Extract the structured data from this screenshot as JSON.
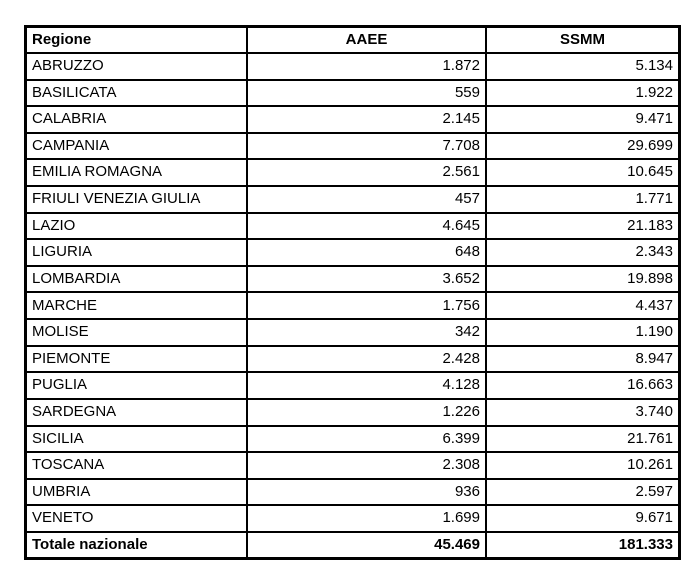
{
  "chart_data": {
    "type": "table",
    "title": "",
    "columns": [
      "Regione",
      "AAEE",
      "SSMM"
    ],
    "rows": [
      [
        "ABRUZZO",
        "1.872",
        "5.134"
      ],
      [
        "BASILICATA",
        "559",
        "1.922"
      ],
      [
        "CALABRIA",
        "2.145",
        "9.471"
      ],
      [
        "CAMPANIA",
        "7.708",
        "29.699"
      ],
      [
        "EMILIA ROMAGNA",
        "2.561",
        "10.645"
      ],
      [
        "FRIULI VENEZIA GIULIA",
        "457",
        "1.771"
      ],
      [
        "LAZIO",
        "4.645",
        "21.183"
      ],
      [
        "LIGURIA",
        "648",
        "2.343"
      ],
      [
        "LOMBARDIA",
        "3.652",
        "19.898"
      ],
      [
        "MARCHE",
        "1.756",
        "4.437"
      ],
      [
        "MOLISE",
        "342",
        "1.190"
      ],
      [
        "PIEMONTE",
        "2.428",
        "8.947"
      ],
      [
        "PUGLIA",
        "4.128",
        "16.663"
      ],
      [
        "SARDEGNA",
        "1.226",
        "3.740"
      ],
      [
        "SICILIA",
        "6.399",
        "21.761"
      ],
      [
        "TOSCANA",
        "2.308",
        "10.261"
      ],
      [
        "UMBRIA",
        "936",
        "2.597"
      ],
      [
        "VENETO",
        "1.699",
        "9.671"
      ]
    ],
    "total_row": [
      "Totale nazionale",
      "45.469",
      "181.333"
    ],
    "number_format": "Italian thousands separator (.)",
    "layout": {
      "header_bold": true,
      "total_bold": true,
      "region_align": "left",
      "number_align": "right",
      "grid": true,
      "border_color": "#000000"
    }
  },
  "table": {
    "columns": [
      {
        "label": "Regione"
      },
      {
        "label": "AAEE"
      },
      {
        "label": "SSMM"
      }
    ],
    "total": {
      "regione": "Totale nazionale",
      "aaee": "45.469",
      "ssmm": "181.333"
    }
  },
  "colors": {
    "background": "#ffffff",
    "border": "#000000",
    "text": "#000000"
  }
}
